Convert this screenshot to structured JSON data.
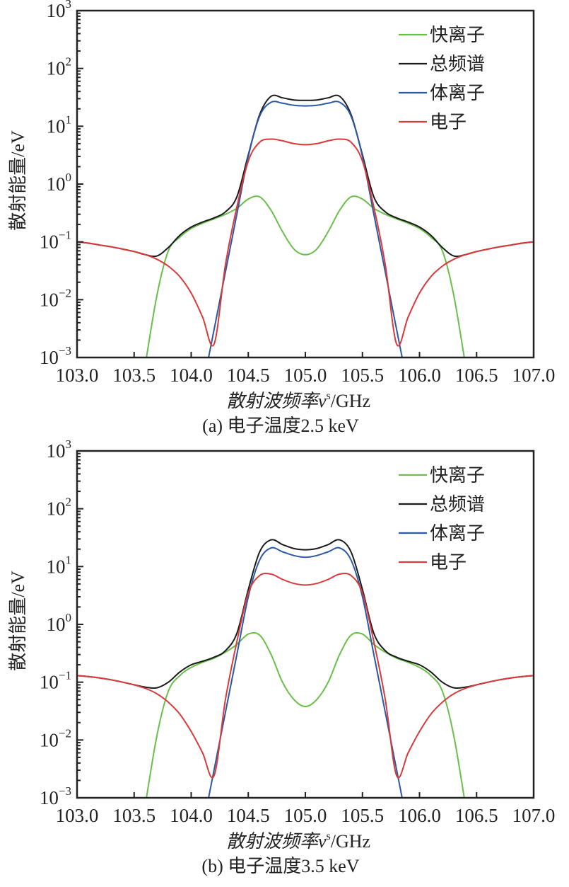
{
  "chart_data": [
    {
      "type": "line",
      "caption": "(a) 电子温度2.5 keV",
      "xlabel": "散射波频率ν",
      "xlabel_sup": "s",
      "xlabel_unit": "/GHz",
      "ylabel": "散射能量/eV",
      "xlim": [
        103.0,
        107.0
      ],
      "ylim": [
        0.001,
        1000
      ],
      "yscale": "log",
      "xticks": [
        "103.0",
        "103.5",
        "104.0",
        "104.5",
        "105.0",
        "105.5",
        "106.0",
        "106.5",
        "107.0"
      ],
      "yticks": [
        {
          "base": "10",
          "exp": "3"
        },
        {
          "base": "10",
          "exp": "2"
        },
        {
          "base": "10",
          "exp": "1"
        },
        {
          "base": "10",
          "exp": "0"
        },
        {
          "base": "10",
          "exp": "−1"
        },
        {
          "base": "10",
          "exp": "−2"
        },
        {
          "base": "10",
          "exp": "−3"
        }
      ],
      "legend_position": "top-right",
      "x": [
        103.0,
        103.1,
        103.2,
        103.3,
        103.4,
        103.5,
        103.6,
        103.7,
        103.8,
        103.9,
        104.0,
        104.1,
        104.2,
        104.3,
        104.4,
        104.5,
        104.6,
        104.7,
        104.8,
        104.9,
        105.0,
        105.1,
        105.2,
        105.3,
        105.4,
        105.5,
        105.6,
        105.7,
        105.8,
        105.9,
        106.0,
        106.1,
        106.2,
        106.3,
        106.4,
        106.5,
        106.6,
        106.7,
        106.8,
        106.9,
        107.0
      ],
      "series": [
        {
          "name": "快离子",
          "color": "#6abf4b",
          "values": [
            null,
            null,
            null,
            null,
            null,
            null,
            0.0008,
            0.012,
            0.07,
            0.12,
            0.17,
            0.21,
            0.25,
            0.3,
            0.38,
            0.55,
            0.6,
            0.35,
            0.15,
            0.075,
            0.06,
            0.075,
            0.15,
            0.35,
            0.6,
            0.55,
            0.38,
            0.3,
            0.25,
            0.21,
            0.17,
            0.12,
            0.07,
            0.012,
            0.0008,
            null,
            null,
            null,
            null,
            null,
            null
          ]
        },
        {
          "name": "总频谱",
          "color": "#1a1a1a",
          "values": [
            0.1,
            0.095,
            0.088,
            0.082,
            0.075,
            0.068,
            0.06,
            0.057,
            0.08,
            0.13,
            0.18,
            0.22,
            0.26,
            0.33,
            0.6,
            3.2,
            16,
            33,
            31,
            28.5,
            28,
            28.5,
            31,
            33,
            16,
            3.2,
            0.6,
            0.33,
            0.26,
            0.22,
            0.18,
            0.13,
            0.08,
            0.057,
            0.06,
            0.068,
            0.075,
            0.082,
            0.088,
            0.095,
            0.1
          ]
        },
        {
          "name": "体离子",
          "color": "#2b59a8",
          "values": [
            null,
            null,
            null,
            null,
            null,
            null,
            null,
            null,
            null,
            null,
            null,
            0.0003,
            0.003,
            0.03,
            0.3,
            3,
            15,
            26,
            25,
            23,
            22.5,
            23,
            25,
            26,
            15,
            3,
            0.3,
            0.03,
            0.003,
            0.0003,
            null,
            null,
            null,
            null,
            null,
            null,
            null,
            null,
            null,
            null,
            null
          ]
        },
        {
          "name": "电子",
          "color": "#d93a3a",
          "values": [
            0.1,
            0.095,
            0.088,
            0.082,
            0.075,
            0.068,
            0.06,
            0.05,
            0.038,
            0.025,
            0.013,
            0.005,
            0.0017,
            0.04,
            0.4,
            2.5,
            5.3,
            6.0,
            5.6,
            5.0,
            4.8,
            5.0,
            5.6,
            6.0,
            5.3,
            2.5,
            0.4,
            0.04,
            0.0017,
            0.005,
            0.013,
            0.025,
            0.038,
            0.05,
            0.06,
            0.068,
            0.075,
            0.082,
            0.088,
            0.095,
            0.1
          ]
        }
      ]
    },
    {
      "type": "line",
      "caption": "(b) 电子温度3.5 keV",
      "xlabel": "散射波频率ν",
      "xlabel_sup": "s",
      "xlabel_unit": "/GHz",
      "ylabel": "散射能量/eV",
      "xlim": [
        103.0,
        107.0
      ],
      "ylim": [
        0.001,
        1000
      ],
      "yscale": "log",
      "xticks": [
        "103.0",
        "103.5",
        "104.0",
        "104.5",
        "105.0",
        "105.5",
        "106.0",
        "106.5",
        "107.0"
      ],
      "yticks": [
        {
          "base": "10",
          "exp": "3"
        },
        {
          "base": "10",
          "exp": "2"
        },
        {
          "base": "10",
          "exp": "1"
        },
        {
          "base": "10",
          "exp": "0"
        },
        {
          "base": "10",
          "exp": "−1"
        },
        {
          "base": "10",
          "exp": "−2"
        },
        {
          "base": "10",
          "exp": "−3"
        }
      ],
      "legend_position": "top-right",
      "x": [
        103.0,
        103.1,
        103.2,
        103.3,
        103.4,
        103.5,
        103.6,
        103.7,
        103.8,
        103.9,
        104.0,
        104.1,
        104.2,
        104.3,
        104.4,
        104.5,
        104.6,
        104.7,
        104.8,
        104.9,
        105.0,
        105.1,
        105.2,
        105.3,
        105.4,
        105.5,
        105.6,
        105.7,
        105.8,
        105.9,
        106.0,
        106.1,
        106.2,
        106.3,
        106.4,
        106.5,
        106.6,
        106.7,
        106.8,
        106.9,
        107.0
      ],
      "series": [
        {
          "name": "快离子",
          "color": "#6abf4b",
          "values": [
            null,
            null,
            null,
            null,
            null,
            null,
            0.0008,
            0.012,
            0.07,
            0.13,
            0.18,
            0.22,
            0.26,
            0.33,
            0.45,
            0.68,
            0.65,
            0.3,
            0.1,
            0.05,
            0.038,
            0.05,
            0.1,
            0.3,
            0.65,
            0.68,
            0.45,
            0.33,
            0.26,
            0.22,
            0.18,
            0.13,
            0.07,
            0.012,
            0.0008,
            null,
            null,
            null,
            null,
            null,
            null
          ]
        },
        {
          "name": "总频谱",
          "color": "#1a1a1a",
          "values": [
            0.13,
            0.125,
            0.118,
            0.11,
            0.1,
            0.09,
            0.082,
            0.08,
            0.1,
            0.15,
            0.2,
            0.23,
            0.27,
            0.35,
            0.7,
            4,
            18,
            29,
            24,
            20.5,
            19.5,
            20.5,
            24,
            29,
            18,
            4,
            0.7,
            0.35,
            0.27,
            0.23,
            0.2,
            0.15,
            0.1,
            0.08,
            0.082,
            0.09,
            0.1,
            0.11,
            0.118,
            0.125,
            0.13
          ]
        },
        {
          "name": "体离子",
          "color": "#2b59a8",
          "values": [
            null,
            null,
            null,
            null,
            null,
            null,
            null,
            null,
            null,
            null,
            null,
            0.0003,
            0.003,
            0.03,
            0.3,
            3,
            13,
            21,
            18,
            15.5,
            14.5,
            15.5,
            18,
            21,
            13,
            3,
            0.3,
            0.03,
            0.003,
            0.0003,
            null,
            null,
            null,
            null,
            null,
            null,
            null,
            null,
            null,
            null,
            null
          ]
        },
        {
          "name": "电子",
          "color": "#d93a3a",
          "values": [
            0.13,
            0.125,
            0.118,
            0.11,
            0.1,
            0.09,
            0.078,
            0.063,
            0.045,
            0.028,
            0.014,
            0.006,
            0.0024,
            0.05,
            0.5,
            3.5,
            7,
            7.4,
            6,
            5.1,
            4.8,
            5.1,
            6,
            7.4,
            7,
            3.5,
            0.5,
            0.05,
            0.0024,
            0.006,
            0.014,
            0.028,
            0.045,
            0.063,
            0.078,
            0.09,
            0.1,
            0.11,
            0.118,
            0.125,
            0.13
          ]
        }
      ]
    }
  ]
}
